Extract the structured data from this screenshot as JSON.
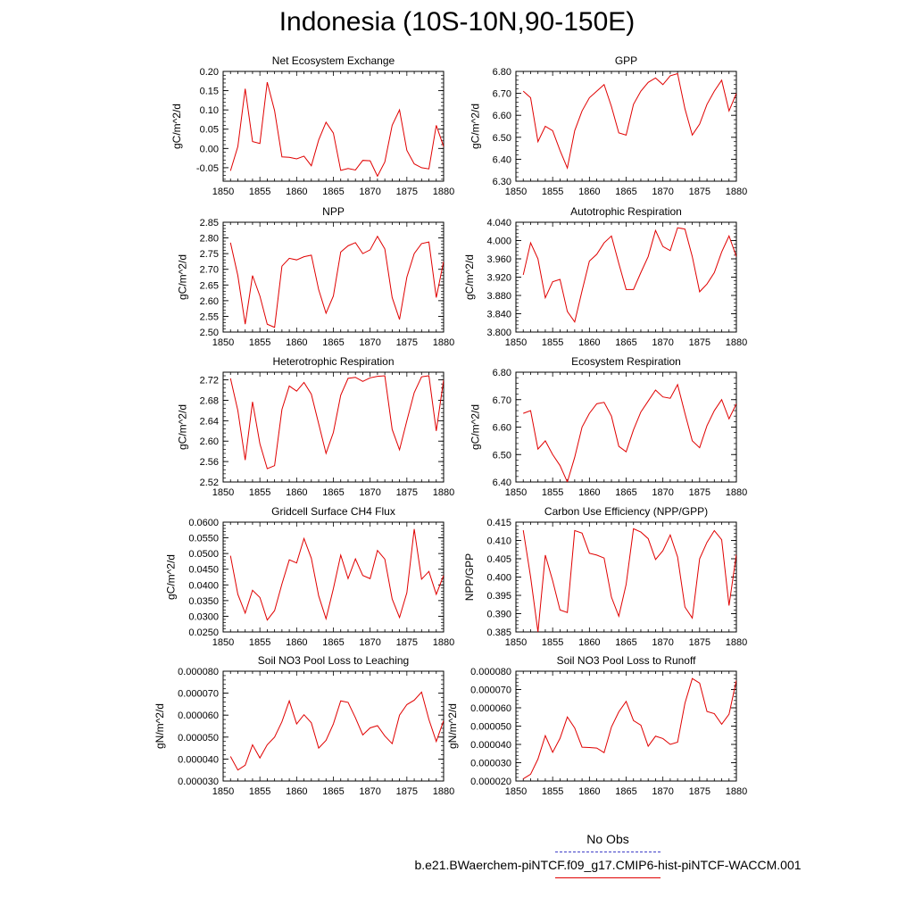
{
  "title": "Indonesia (10S-10N,90-150E)",
  "legend": {
    "obs_label": "No Obs",
    "run_label": "b.e21.BWaerchem-piNTCF.f09_g17.CMIP6-hist-piNTCF-WACCM.001",
    "obs_color": "#4040c8",
    "run_color": "#e00000"
  },
  "chart_data": [
    {
      "type": "line",
      "title": "Net Ecosystem Exchange",
      "ylabel": "gC/m^2/d",
      "xlim": [
        1850,
        1880
      ],
      "xticks": [
        1850,
        1855,
        1860,
        1865,
        1870,
        1875,
        1880
      ],
      "ylim": [
        -0.085,
        0.2
      ],
      "yticks": [
        -0.05,
        0.0,
        0.05,
        0.1,
        0.15,
        0.2
      ],
      "ytick_labels": [
        "-0.05",
        "0.00",
        "0.05",
        "0.10",
        "0.15",
        "0.20"
      ],
      "series": [
        {
          "color": "#e00000",
          "x": [
            1851,
            1852,
            1853,
            1854,
            1855,
            1856,
            1857,
            1858,
            1859,
            1860,
            1861,
            1862,
            1863,
            1864,
            1865,
            1866,
            1867,
            1868,
            1869,
            1870,
            1871,
            1872,
            1873,
            1874,
            1875,
            1876,
            1877,
            1878,
            1879,
            1880
          ],
          "values": [
            -0.058,
            0.005,
            0.155,
            0.018,
            0.013,
            0.172,
            0.098,
            -0.022,
            -0.023,
            -0.027,
            -0.02,
            -0.045,
            0.022,
            0.068,
            0.04,
            -0.057,
            -0.052,
            -0.056,
            -0.031,
            -0.032,
            -0.072,
            -0.035,
            0.06,
            0.1,
            -0.005,
            -0.04,
            -0.05,
            -0.053,
            0.06,
            0.005
          ]
        }
      ]
    },
    {
      "type": "line",
      "title": "GPP",
      "ylabel": "gC/m^2/d",
      "xlim": [
        1850,
        1880
      ],
      "xticks": [
        1850,
        1855,
        1860,
        1865,
        1870,
        1875,
        1880
      ],
      "ylim": [
        6.3,
        6.8
      ],
      "yticks": [
        6.3,
        6.4,
        6.5,
        6.6,
        6.7,
        6.8
      ],
      "ytick_labels": [
        "6.30",
        "6.40",
        "6.50",
        "6.60",
        "6.70",
        "6.80"
      ],
      "series": [
        {
          "color": "#e00000",
          "x": [
            1851,
            1852,
            1853,
            1854,
            1855,
            1856,
            1857,
            1858,
            1859,
            1860,
            1861,
            1862,
            1863,
            1864,
            1865,
            1866,
            1867,
            1868,
            1869,
            1870,
            1871,
            1872,
            1873,
            1874,
            1875,
            1876,
            1877,
            1878,
            1879,
            1880
          ],
          "values": [
            6.71,
            6.68,
            6.48,
            6.55,
            6.53,
            6.44,
            6.36,
            6.53,
            6.62,
            6.68,
            6.71,
            6.74,
            6.64,
            6.52,
            6.51,
            6.65,
            6.71,
            6.75,
            6.77,
            6.74,
            6.78,
            6.79,
            6.63,
            6.51,
            6.56,
            6.65,
            6.71,
            6.76,
            6.62,
            6.7
          ]
        }
      ]
    },
    {
      "type": "line",
      "title": "NPP",
      "ylabel": "gC/m^2/d",
      "xlim": [
        1850,
        1880
      ],
      "xticks": [
        1850,
        1855,
        1860,
        1865,
        1870,
        1875,
        1880
      ],
      "ylim": [
        2.5,
        2.85
      ],
      "yticks": [
        2.5,
        2.55,
        2.6,
        2.65,
        2.7,
        2.75,
        2.8,
        2.85
      ],
      "ytick_labels": [
        "2.50",
        "2.55",
        "2.60",
        "2.65",
        "2.70",
        "2.75",
        "2.80",
        "2.85"
      ],
      "series": [
        {
          "color": "#e00000",
          "x": [
            1851,
            1852,
            1853,
            1854,
            1855,
            1856,
            1857,
            1858,
            1859,
            1860,
            1861,
            1862,
            1863,
            1864,
            1865,
            1866,
            1867,
            1868,
            1869,
            1870,
            1871,
            1872,
            1873,
            1874,
            1875,
            1876,
            1877,
            1878,
            1879,
            1880
          ],
          "values": [
            2.785,
            2.68,
            2.525,
            2.68,
            2.615,
            2.525,
            2.515,
            2.71,
            2.735,
            2.73,
            2.74,
            2.745,
            2.635,
            2.56,
            2.615,
            2.755,
            2.775,
            2.785,
            2.75,
            2.762,
            2.805,
            2.765,
            2.61,
            2.54,
            2.675,
            2.75,
            2.782,
            2.787,
            2.61,
            2.725
          ]
        }
      ]
    },
    {
      "type": "line",
      "title": "Autotrophic Respiration",
      "ylabel": "gC/m^2/d",
      "xlim": [
        1850,
        1880
      ],
      "xticks": [
        1850,
        1855,
        1860,
        1865,
        1870,
        1875,
        1880
      ],
      "ylim": [
        3.8,
        4.04
      ],
      "yticks": [
        3.8,
        3.84,
        3.88,
        3.92,
        3.96,
        4.0,
        4.04
      ],
      "ytick_labels": [
        "3.800",
        "3.840",
        "3.880",
        "3.920",
        "3.960",
        "4.000",
        "4.040"
      ],
      "series": [
        {
          "color": "#e00000",
          "x": [
            1851,
            1852,
            1853,
            1854,
            1855,
            1856,
            1857,
            1858,
            1859,
            1860,
            1861,
            1862,
            1863,
            1864,
            1865,
            1866,
            1867,
            1868,
            1869,
            1870,
            1871,
            1872,
            1873,
            1874,
            1875,
            1876,
            1877,
            1878,
            1879,
            1880
          ],
          "values": [
            3.925,
            3.995,
            3.96,
            3.875,
            3.91,
            3.915,
            3.845,
            3.822,
            3.89,
            3.955,
            3.97,
            3.995,
            4.01,
            3.95,
            3.893,
            3.893,
            3.93,
            3.965,
            4.022,
            3.987,
            3.978,
            4.028,
            4.025,
            3.965,
            3.888,
            3.905,
            3.93,
            3.975,
            4.01,
            3.965
          ]
        }
      ]
    },
    {
      "type": "line",
      "title": "Heterotrophic Respiration",
      "ylabel": "gC/m^2/d",
      "xlim": [
        1850,
        1880
      ],
      "xticks": [
        1850,
        1855,
        1860,
        1865,
        1870,
        1875,
        1880
      ],
      "ylim": [
        2.52,
        2.735
      ],
      "yticks": [
        2.52,
        2.56,
        2.6,
        2.64,
        2.68,
        2.72
      ],
      "ytick_labels": [
        "2.52",
        "2.56",
        "2.60",
        "2.64",
        "2.68",
        "2.72"
      ],
      "series": [
        {
          "color": "#e00000",
          "x": [
            1851,
            1852,
            1853,
            1854,
            1855,
            1856,
            1857,
            1858,
            1859,
            1860,
            1861,
            1862,
            1863,
            1864,
            1865,
            1866,
            1867,
            1868,
            1869,
            1870,
            1871,
            1872,
            1873,
            1874,
            1875,
            1876,
            1877,
            1878,
            1879,
            1880
          ],
          "values": [
            2.723,
            2.66,
            2.563,
            2.677,
            2.595,
            2.546,
            2.552,
            2.662,
            2.708,
            2.698,
            2.715,
            2.692,
            2.634,
            2.576,
            2.617,
            2.69,
            2.723,
            2.725,
            2.717,
            2.724,
            2.727,
            2.728,
            2.623,
            2.583,
            2.64,
            2.695,
            2.726,
            2.728,
            2.62,
            2.72
          ]
        }
      ]
    },
    {
      "type": "line",
      "title": "Ecosystem Respiration",
      "ylabel": "gC/m^2/d",
      "xlim": [
        1850,
        1880
      ],
      "xticks": [
        1850,
        1855,
        1860,
        1865,
        1870,
        1875,
        1880
      ],
      "ylim": [
        6.4,
        6.8
      ],
      "yticks": [
        6.4,
        6.5,
        6.6,
        6.7,
        6.8
      ],
      "ytick_labels": [
        "6.40",
        "6.50",
        "6.60",
        "6.70",
        "6.80"
      ],
      "series": [
        {
          "color": "#e00000",
          "x": [
            1851,
            1852,
            1853,
            1854,
            1855,
            1856,
            1857,
            1858,
            1859,
            1860,
            1861,
            1862,
            1863,
            1864,
            1865,
            1866,
            1867,
            1868,
            1869,
            1870,
            1871,
            1872,
            1873,
            1874,
            1875,
            1876,
            1877,
            1878,
            1879,
            1880
          ],
          "values": [
            6.65,
            6.66,
            6.52,
            6.55,
            6.5,
            6.46,
            6.4,
            6.49,
            6.6,
            6.65,
            6.685,
            6.69,
            6.64,
            6.53,
            6.51,
            6.59,
            6.655,
            6.695,
            6.735,
            6.71,
            6.705,
            6.755,
            6.65,
            6.55,
            6.525,
            6.605,
            6.66,
            6.7,
            6.63,
            6.685
          ]
        }
      ]
    },
    {
      "type": "line",
      "title": "Gridcell Surface CH4 Flux",
      "ylabel": "gC/m^2/d",
      "xlim": [
        1850,
        1880
      ],
      "xticks": [
        1850,
        1855,
        1860,
        1865,
        1870,
        1875,
        1880
      ],
      "ylim": [
        0.025,
        0.06
      ],
      "yticks": [
        0.025,
        0.03,
        0.035,
        0.04,
        0.045,
        0.05,
        0.055,
        0.06
      ],
      "ytick_labels": [
        "0.0250",
        "0.0300",
        "0.0350",
        "0.0400",
        "0.0450",
        "0.0500",
        "0.0550",
        "0.0600"
      ],
      "series": [
        {
          "color": "#e00000",
          "x": [
            1851,
            1852,
            1853,
            1854,
            1855,
            1856,
            1857,
            1858,
            1859,
            1860,
            1861,
            1862,
            1863,
            1864,
            1865,
            1866,
            1867,
            1868,
            1869,
            1870,
            1871,
            1872,
            1873,
            1874,
            1875,
            1876,
            1877,
            1878,
            1879,
            1880
          ],
          "values": [
            0.0493,
            0.037,
            0.031,
            0.0383,
            0.036,
            0.0288,
            0.0318,
            0.0403,
            0.048,
            0.047,
            0.0548,
            0.0485,
            0.0365,
            0.0292,
            0.0388,
            0.0495,
            0.042,
            0.0483,
            0.043,
            0.042,
            0.051,
            0.0482,
            0.0355,
            0.0296,
            0.0375,
            0.0578,
            0.0418,
            0.0443,
            0.037,
            0.043
          ]
        }
      ]
    },
    {
      "type": "line",
      "title": "Carbon Use Efficiency (NPP/GPP)",
      "ylabel": "NPP/GPP",
      "xlim": [
        1850,
        1880
      ],
      "xticks": [
        1850,
        1855,
        1860,
        1865,
        1870,
        1875,
        1880
      ],
      "ylim": [
        0.385,
        0.415
      ],
      "yticks": [
        0.385,
        0.39,
        0.395,
        0.4,
        0.405,
        0.41,
        0.415
      ],
      "ytick_labels": [
        "0.385",
        "0.390",
        "0.395",
        "0.400",
        "0.405",
        "0.410",
        "0.415"
      ],
      "series": [
        {
          "color": "#e00000",
          "x": [
            1851,
            1852,
            1853,
            1854,
            1855,
            1856,
            1857,
            1858,
            1859,
            1860,
            1861,
            1862,
            1863,
            1864,
            1865,
            1866,
            1867,
            1868,
            1869,
            1870,
            1871,
            1872,
            1873,
            1874,
            1875,
            1876,
            1877,
            1878,
            1879,
            1880
          ],
          "values": [
            0.4128,
            0.4,
            0.385,
            0.406,
            0.399,
            0.391,
            0.3903,
            0.4127,
            0.412,
            0.4065,
            0.406,
            0.4052,
            0.3945,
            0.3893,
            0.398,
            0.4132,
            0.4123,
            0.4105,
            0.4048,
            0.4072,
            0.4115,
            0.4055,
            0.3918,
            0.3888,
            0.405,
            0.4095,
            0.4127,
            0.4102,
            0.3922,
            0.4062
          ]
        }
      ]
    },
    {
      "type": "line",
      "title": "Soil NO3 Pool Loss to Leaching",
      "ylabel": "gN/m^2/d",
      "xlim": [
        1850,
        1880
      ],
      "xticks": [
        1850,
        1855,
        1860,
        1865,
        1870,
        1875,
        1880
      ],
      "ylim": [
        3e-05,
        8e-05
      ],
      "yticks": [
        3e-05,
        4e-05,
        5e-05,
        6e-05,
        7e-05,
        8e-05
      ],
      "ytick_labels": [
        "0.000030",
        "0.000040",
        "0.000050",
        "0.000060",
        "0.000070",
        "0.000080"
      ],
      "series": [
        {
          "color": "#e00000",
          "x": [
            1851,
            1852,
            1853,
            1854,
            1855,
            1856,
            1857,
            1858,
            1859,
            1860,
            1861,
            1862,
            1863,
            1864,
            1865,
            1866,
            1867,
            1868,
            1869,
            1870,
            1871,
            1872,
            1873,
            1874,
            1875,
            1876,
            1877,
            1878,
            1879,
            1880
          ],
          "values": [
            4.12e-05,
            3.5e-05,
            3.72e-05,
            4.65e-05,
            4.05e-05,
            4.65e-05,
            5e-05,
            5.7e-05,
            6.65e-05,
            5.6e-05,
            6.02e-05,
            5.65e-05,
            4.5e-05,
            4.85e-05,
            5.6e-05,
            6.65e-05,
            6.58e-05,
            5.88e-05,
            5.1e-05,
            5.42e-05,
            5.52e-05,
            5.05e-05,
            4.7e-05,
            6e-05,
            6.48e-05,
            6.68e-05,
            7.05e-05,
            5.8e-05,
            4.8e-05,
            5.75e-05
          ]
        }
      ]
    },
    {
      "type": "line",
      "title": "Soil NO3 Pool Loss to Runoff",
      "ylabel": "gN/m^2/d",
      "xlim": [
        1850,
        1880
      ],
      "xticks": [
        1850,
        1855,
        1860,
        1865,
        1870,
        1875,
        1880
      ],
      "ylim": [
        2e-05,
        8e-05
      ],
      "yticks": [
        2e-05,
        3e-05,
        4e-05,
        5e-05,
        6e-05,
        7e-05,
        8e-05
      ],
      "ytick_labels": [
        "0.000020",
        "0.000030",
        "0.000040",
        "0.000050",
        "0.000060",
        "0.000070",
        "0.000080"
      ],
      "series": [
        {
          "color": "#e00000",
          "x": [
            1851,
            1852,
            1853,
            1854,
            1855,
            1856,
            1857,
            1858,
            1859,
            1860,
            1861,
            1862,
            1863,
            1864,
            1865,
            1866,
            1867,
            1868,
            1869,
            1870,
            1871,
            1872,
            1873,
            1874,
            1875,
            1876,
            1877,
            1878,
            1879,
            1880
          ],
          "values": [
            2.12e-05,
            2.37e-05,
            3.2e-05,
            4.48e-05,
            3.57e-05,
            4.33e-05,
            5.5e-05,
            4.9e-05,
            3.85e-05,
            3.83e-05,
            3.8e-05,
            3.55e-05,
            4.95e-05,
            5.78e-05,
            6.35e-05,
            5.3e-05,
            5.05e-05,
            3.9e-05,
            4.45e-05,
            4.32e-05,
            4e-05,
            4.12e-05,
            6.25e-05,
            7.6e-05,
            7.35e-05,
            5.8e-05,
            5.68e-05,
            5.1e-05,
            5.65e-05,
            7.5e-05
          ]
        }
      ]
    }
  ]
}
